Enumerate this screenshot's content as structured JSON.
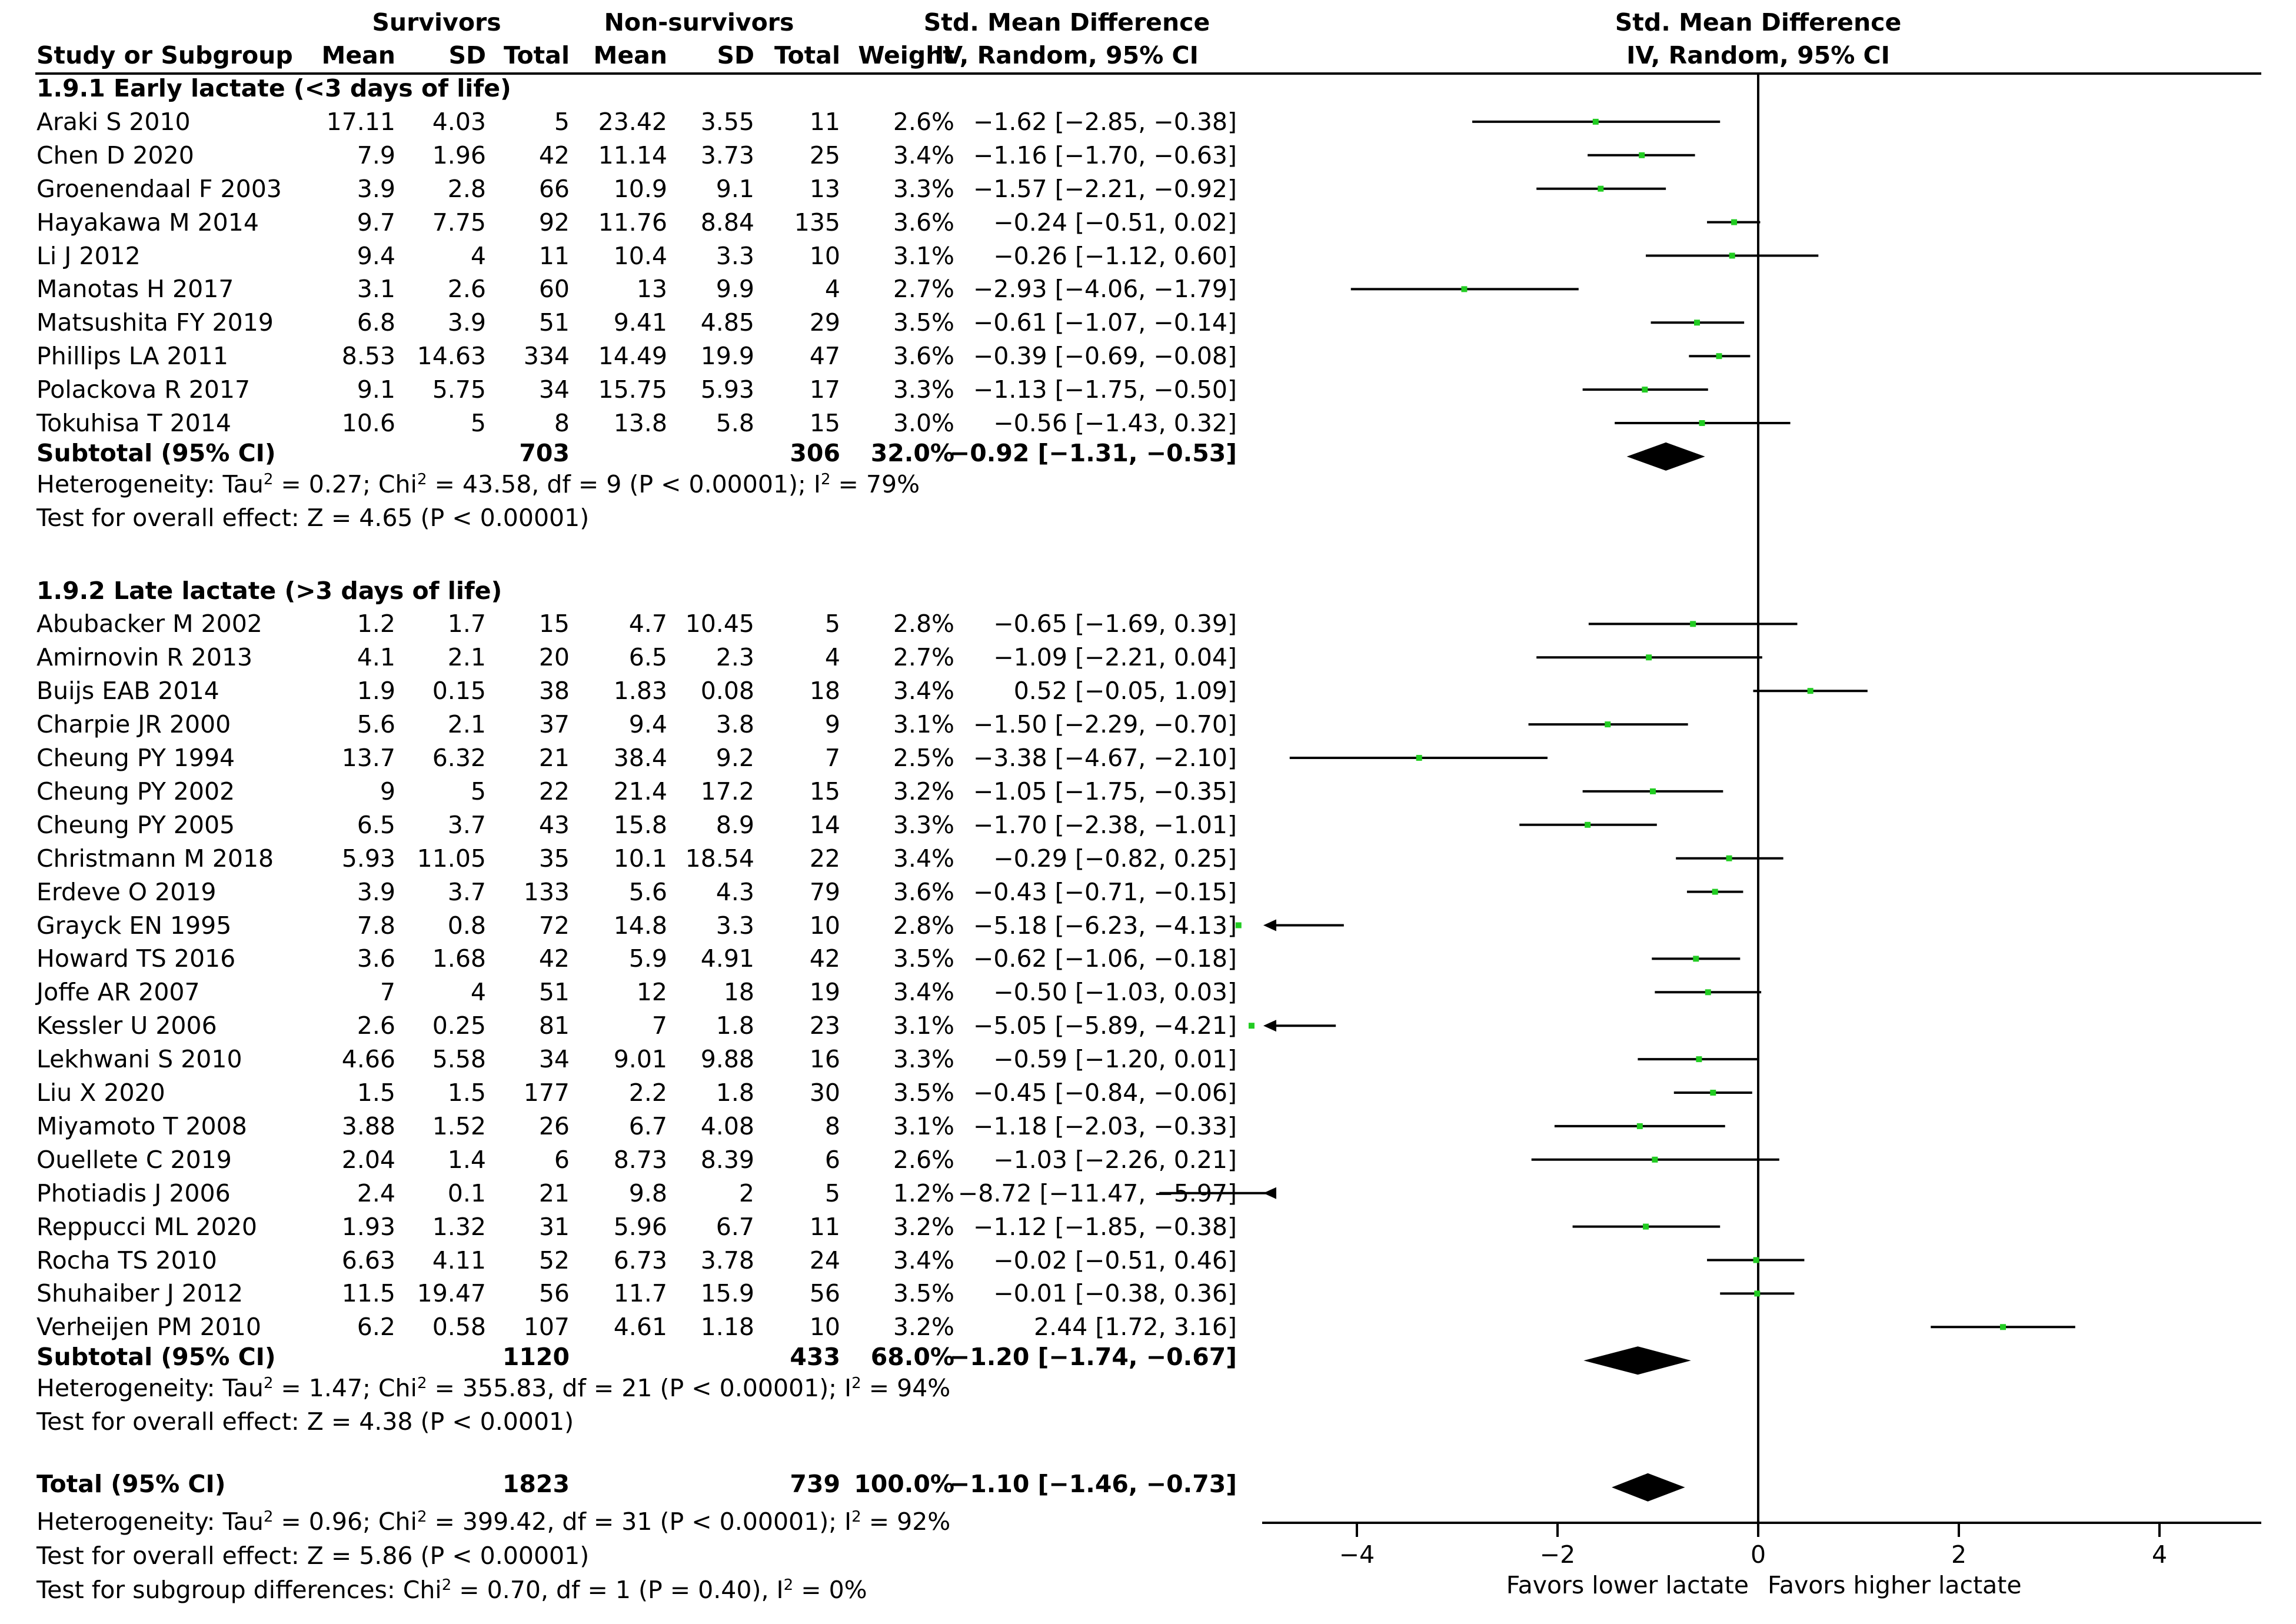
{
  "header": {
    "group1": "Survivors",
    "group2": "Non-survivors",
    "effect_col": "Std. Mean Difference",
    "plot_col": "Std. Mean Difference",
    "study_col": "Study or Subgroup",
    "mean1": "Mean",
    "sd1": "SD",
    "total1": "Total",
    "mean2": "Mean",
    "sd2": "SD",
    "total2": "Total",
    "weight": "Weight",
    "method": "IV, Random, 95% CI",
    "plot_method": "IV, Random, 95% CI"
  },
  "subgroups": [
    {
      "title": "1.9.1 Early lactate (<3 days of life)",
      "studies": [
        {
          "name": "Araki S 2010",
          "m1": "17.11",
          "sd1": "4.03",
          "n1": "5",
          "m2": "23.42",
          "sd2": "3.55",
          "n2": "11",
          "w": "2.6%",
          "ci": "−1.62 [−2.85, −0.38]",
          "est": -1.62,
          "lo": -2.85,
          "hi": -0.38
        },
        {
          "name": "Chen D 2020",
          "m1": "7.9",
          "sd1": "1.96",
          "n1": "42",
          "m2": "11.14",
          "sd2": "3.73",
          "n2": "25",
          "w": "3.4%",
          "ci": "−1.16 [−1.70, −0.63]",
          "est": -1.16,
          "lo": -1.7,
          "hi": -0.63
        },
        {
          "name": "Groenendaal F 2003",
          "m1": "3.9",
          "sd1": "2.8",
          "n1": "66",
          "m2": "10.9",
          "sd2": "9.1",
          "n2": "13",
          "w": "3.3%",
          "ci": "−1.57 [−2.21, −0.92]",
          "est": -1.57,
          "lo": -2.21,
          "hi": -0.92
        },
        {
          "name": "Hayakawa M 2014",
          "m1": "9.7",
          "sd1": "7.75",
          "n1": "92",
          "m2": "11.76",
          "sd2": "8.84",
          "n2": "135",
          "w": "3.6%",
          "ci": "−0.24 [−0.51, 0.02]",
          "est": -0.24,
          "lo": -0.51,
          "hi": 0.02
        },
        {
          "name": "Li J 2012",
          "m1": "9.4",
          "sd1": "4",
          "n1": "11",
          "m2": "10.4",
          "sd2": "3.3",
          "n2": "10",
          "w": "3.1%",
          "ci": "−0.26 [−1.12, 0.60]",
          "est": -0.26,
          "lo": -1.12,
          "hi": 0.6
        },
        {
          "name": "Manotas H 2017",
          "m1": "3.1",
          "sd1": "2.6",
          "n1": "60",
          "m2": "13",
          "sd2": "9.9",
          "n2": "4",
          "w": "2.7%",
          "ci": "−2.93 [−4.06, −1.79]",
          "est": -2.93,
          "lo": -4.06,
          "hi": -1.79
        },
        {
          "name": "Matsushita FY 2019",
          "m1": "6.8",
          "sd1": "3.9",
          "n1": "51",
          "m2": "9.41",
          "sd2": "4.85",
          "n2": "29",
          "w": "3.5%",
          "ci": "−0.61 [−1.07, −0.14]",
          "est": -0.61,
          "lo": -1.07,
          "hi": -0.14
        },
        {
          "name": "Phillips LA 2011",
          "m1": "8.53",
          "sd1": "14.63",
          "n1": "334",
          "m2": "14.49",
          "sd2": "19.9",
          "n2": "47",
          "w": "3.6%",
          "ci": "−0.39 [−0.69, −0.08]",
          "est": -0.39,
          "lo": -0.69,
          "hi": -0.08
        },
        {
          "name": "Polackova R 2017",
          "m1": "9.1",
          "sd1": "5.75",
          "n1": "34",
          "m2": "15.75",
          "sd2": "5.93",
          "n2": "17",
          "w": "3.3%",
          "ci": "−1.13 [−1.75, −0.50]",
          "est": -1.13,
          "lo": -1.75,
          "hi": -0.5
        },
        {
          "name": "Tokuhisa T 2014",
          "m1": "10.6",
          "sd1": "5",
          "n1": "8",
          "m2": "13.8",
          "sd2": "5.8",
          "n2": "15",
          "w": "3.0%",
          "ci": "−0.56 [−1.43, 0.32]",
          "est": -0.56,
          "lo": -1.43,
          "hi": 0.32
        }
      ],
      "subtotal": {
        "label": "Subtotal (95% CI)",
        "n1": "703",
        "n2": "306",
        "w": "32.0%",
        "ci": "−0.92 [−1.31, −0.53]",
        "est": -0.92,
        "lo": -1.31,
        "hi": -0.53
      },
      "het_prefix": "Heterogeneity: Tau",
      "het_tau": "2",
      "het_mid": " = 0.27; Chi",
      "het_chi": "2",
      "het_rest": " = 43.58, df = 9 (P < 0.00001); I",
      "het_i": "2",
      "het_end": " = 79%",
      "overall": "Test for overall effect: Z = 4.65 (P < 0.00001)"
    },
    {
      "title": "1.9.2 Late lactate (>3 days of life)",
      "studies": [
        {
          "name": "Abubacker M 2002",
          "m1": "1.2",
          "sd1": "1.7",
          "n1": "15",
          "m2": "4.7",
          "sd2": "10.45",
          "n2": "5",
          "w": "2.8%",
          "ci": "−0.65 [−1.69, 0.39]",
          "est": -0.65,
          "lo": -1.69,
          "hi": 0.39
        },
        {
          "name": "Amirnovin R 2013",
          "m1": "4.1",
          "sd1": "2.1",
          "n1": "20",
          "m2": "6.5",
          "sd2": "2.3",
          "n2": "4",
          "w": "2.7%",
          "ci": "−1.09 [−2.21, 0.04]",
          "est": -1.09,
          "lo": -2.21,
          "hi": 0.04
        },
        {
          "name": "Buijs EAB 2014",
          "m1": "1.9",
          "sd1": "0.15",
          "n1": "38",
          "m2": "1.83",
          "sd2": "0.08",
          "n2": "18",
          "w": "3.4%",
          "ci": "0.52 [−0.05, 1.09]",
          "est": 0.52,
          "lo": -0.05,
          "hi": 1.09
        },
        {
          "name": "Charpie JR 2000",
          "m1": "5.6",
          "sd1": "2.1",
          "n1": "37",
          "m2": "9.4",
          "sd2": "3.8",
          "n2": "9",
          "w": "3.1%",
          "ci": "−1.50 [−2.29, −0.70]",
          "est": -1.5,
          "lo": -2.29,
          "hi": -0.7
        },
        {
          "name": "Cheung PY 1994",
          "m1": "13.7",
          "sd1": "6.32",
          "n1": "21",
          "m2": "38.4",
          "sd2": "9.2",
          "n2": "7",
          "w": "2.5%",
          "ci": "−3.38 [−4.67, −2.10]",
          "est": -3.38,
          "lo": -4.67,
          "hi": -2.1
        },
        {
          "name": "Cheung PY 2002",
          "m1": "9",
          "sd1": "5",
          "n1": "22",
          "m2": "21.4",
          "sd2": "17.2",
          "n2": "15",
          "w": "3.2%",
          "ci": "−1.05 [−1.75, −0.35]",
          "est": -1.05,
          "lo": -1.75,
          "hi": -0.35
        },
        {
          "name": "Cheung PY 2005",
          "m1": "6.5",
          "sd1": "3.7",
          "n1": "43",
          "m2": "15.8",
          "sd2": "8.9",
          "n2": "14",
          "w": "3.3%",
          "ci": "−1.70 [−2.38, −1.01]",
          "est": -1.7,
          "lo": -2.38,
          "hi": -1.01
        },
        {
          "name": "Christmann M 2018",
          "m1": "5.93",
          "sd1": "11.05",
          "n1": "35",
          "m2": "10.1",
          "sd2": "18.54",
          "n2": "22",
          "w": "3.4%",
          "ci": "−0.29 [−0.82, 0.25]",
          "est": -0.29,
          "lo": -0.82,
          "hi": 0.25
        },
        {
          "name": "Erdeve O 2019",
          "m1": "3.9",
          "sd1": "3.7",
          "n1": "133",
          "m2": "5.6",
          "sd2": "4.3",
          "n2": "79",
          "w": "3.6%",
          "ci": "−0.43 [−0.71, −0.15]",
          "est": -0.43,
          "lo": -0.71,
          "hi": -0.15
        },
        {
          "name": "Grayck EN 1995",
          "m1": "7.8",
          "sd1": "0.8",
          "n1": "72",
          "m2": "14.8",
          "sd2": "3.3",
          "n2": "10",
          "w": "2.8%",
          "ci": "−5.18 [−6.23, −4.13]",
          "est": -5.18,
          "lo": -6.23,
          "hi": -4.13
        },
        {
          "name": "Howard TS 2016",
          "m1": "3.6",
          "sd1": "1.68",
          "n1": "42",
          "m2": "5.9",
          "sd2": "4.91",
          "n2": "42",
          "w": "3.5%",
          "ci": "−0.62 [−1.06, −0.18]",
          "est": -0.62,
          "lo": -1.06,
          "hi": -0.18
        },
        {
          "name": "Joffe AR 2007",
          "m1": "7",
          "sd1": "4",
          "n1": "51",
          "m2": "12",
          "sd2": "18",
          "n2": "19",
          "w": "3.4%",
          "ci": "−0.50 [−1.03, 0.03]",
          "est": -0.5,
          "lo": -1.03,
          "hi": 0.03
        },
        {
          "name": "Kessler U 2006",
          "m1": "2.6",
          "sd1": "0.25",
          "n1": "81",
          "m2": "7",
          "sd2": "1.8",
          "n2": "23",
          "w": "3.1%",
          "ci": "−5.05 [−5.89, −4.21]",
          "est": -5.05,
          "lo": -5.89,
          "hi": -4.21
        },
        {
          "name": "Lekhwani S 2010",
          "m1": "4.66",
          "sd1": "5.58",
          "n1": "34",
          "m2": "9.01",
          "sd2": "9.88",
          "n2": "16",
          "w": "3.3%",
          "ci": "−0.59 [−1.20, 0.01]",
          "est": -0.59,
          "lo": -1.2,
          "hi": 0.01
        },
        {
          "name": "Liu X 2020",
          "m1": "1.5",
          "sd1": "1.5",
          "n1": "177",
          "m2": "2.2",
          "sd2": "1.8",
          "n2": "30",
          "w": "3.5%",
          "ci": "−0.45 [−0.84, −0.06]",
          "est": -0.45,
          "lo": -0.84,
          "hi": -0.06
        },
        {
          "name": "Miyamoto T 2008",
          "m1": "3.88",
          "sd1": "1.52",
          "n1": "26",
          "m2": "6.7",
          "sd2": "4.08",
          "n2": "8",
          "w": "3.1%",
          "ci": "−1.18 [−2.03, −0.33]",
          "est": -1.18,
          "lo": -2.03,
          "hi": -0.33
        },
        {
          "name": "Ouellete C 2019",
          "m1": "2.04",
          "sd1": "1.4",
          "n1": "6",
          "m2": "8.73",
          "sd2": "8.39",
          "n2": "6",
          "w": "2.6%",
          "ci": "−1.03 [−2.26, 0.21]",
          "est": -1.03,
          "lo": -2.26,
          "hi": 0.21
        },
        {
          "name": "Photiadis J 2006",
          "m1": "2.4",
          "sd1": "0.1",
          "n1": "21",
          "m2": "9.8",
          "sd2": "2",
          "n2": "5",
          "w": "1.2%",
          "ci": "−8.72 [−11.47, −5.97]",
          "est": -8.72,
          "lo": -11.47,
          "hi": -5.97
        },
        {
          "name": "Reppucci ML 2020",
          "m1": "1.93",
          "sd1": "1.32",
          "n1": "31",
          "m2": "5.96",
          "sd2": "6.7",
          "n2": "11",
          "w": "3.2%",
          "ci": "−1.12 [−1.85, −0.38]",
          "est": -1.12,
          "lo": -1.85,
          "hi": -0.38
        },
        {
          "name": "Rocha TS 2010",
          "m1": "6.63",
          "sd1": "4.11",
          "n1": "52",
          "m2": "6.73",
          "sd2": "3.78",
          "n2": "24",
          "w": "3.4%",
          "ci": "−0.02 [−0.51, 0.46]",
          "est": -0.02,
          "lo": -0.51,
          "hi": 0.46
        },
        {
          "name": "Shuhaiber J 2012",
          "m1": "11.5",
          "sd1": "19.47",
          "n1": "56",
          "m2": "11.7",
          "sd2": "15.9",
          "n2": "56",
          "w": "3.5%",
          "ci": "−0.01 [−0.38, 0.36]",
          "est": -0.01,
          "lo": -0.38,
          "hi": 0.36
        },
        {
          "name": "Verheijen PM 2010",
          "m1": "6.2",
          "sd1": "0.58",
          "n1": "107",
          "m2": "4.61",
          "sd2": "1.18",
          "n2": "10",
          "w": "3.2%",
          "ci": "2.44 [1.72, 3.16]",
          "est": 2.44,
          "lo": 1.72,
          "hi": 3.16
        }
      ],
      "subtotal": {
        "label": "Subtotal (95% CI)",
        "n1": "1120",
        "n2": "433",
        "w": "68.0%",
        "ci": "−1.20 [−1.74, −0.67]",
        "est": -1.2,
        "lo": -1.74,
        "hi": -0.67
      },
      "het_prefix": "Heterogeneity: Tau",
      "het_tau": "2",
      "het_mid": " = 1.47; Chi",
      "het_chi": "2",
      "het_rest": " = 355.83, df = 21 (P < 0.00001); I",
      "het_i": "2",
      "het_end": " = 94%",
      "overall": "Test for overall effect: Z = 4.38 (P < 0.0001)"
    }
  ],
  "total": {
    "label": "Total (95% CI)",
    "n1": "1823",
    "n2": "739",
    "w": "100.0%",
    "ci": "−1.10 [−1.46, −0.73]",
    "est": -1.1,
    "lo": -1.46,
    "hi": -0.73,
    "het_prefix": "Heterogeneity: Tau",
    "het_tau": "2",
    "het_mid": " = 0.96; Chi",
    "het_chi": "2",
    "het_rest": " = 399.42, df = 31 (P < 0.00001); I",
    "het_i": "2",
    "het_end": " = 92%",
    "overall": "Test for overall effect: Z = 5.86 (P < 0.00001)",
    "subgroup_prefix": "Test for subgroup differences: Chi",
    "subgroup_chi": "2",
    "subgroup_rest": " = 0.70, df = 1 (P = 0.40), I",
    "subgroup_i": "2",
    "subgroup_end": " = 0%"
  },
  "chart_data": {
    "type": "forest",
    "title": "Std. Mean Difference",
    "subtitle": "IV, Random, 95% CI",
    "xlim": [
      -5,
      5
    ],
    "ticks": [
      -4,
      -2,
      0,
      2,
      4
    ],
    "tick_labels": [
      "−4",
      "−2",
      "0",
      "2",
      "4"
    ],
    "left_label": "Favors lower lactate",
    "right_label": "Favors higher lactate",
    "null_value": 0,
    "marker_color": "#22cc22",
    "line_color": "#000000"
  }
}
